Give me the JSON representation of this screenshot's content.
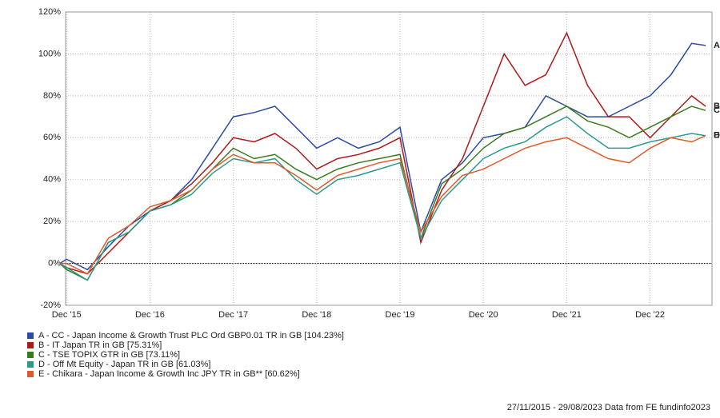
{
  "chart_data": {
    "type": "line",
    "x": [
      "2015-11",
      "2015-12",
      "2016-03",
      "2016-06",
      "2016-09",
      "2016-12",
      "2017-03",
      "2017-06",
      "2017-09",
      "2017-12",
      "2018-03",
      "2018-06",
      "2018-09",
      "2018-12",
      "2019-03",
      "2019-06",
      "2019-09",
      "2019-12",
      "2020-03",
      "2020-06",
      "2020-09",
      "2020-12",
      "2021-03",
      "2021-06",
      "2021-09",
      "2021-12",
      "2022-03",
      "2022-06",
      "2022-09",
      "2022-12",
      "2023-03",
      "2023-06",
      "2023-08"
    ],
    "xlim": [
      "2015-11-27",
      "2023-08-29"
    ],
    "xticks": [
      {
        "value": "2015-12",
        "label": "Dec '15"
      },
      {
        "value": "2016-12",
        "label": "Dec '16"
      },
      {
        "value": "2017-12",
        "label": "Dec '17"
      },
      {
        "value": "2018-12",
        "label": "Dec '18"
      },
      {
        "value": "2019-12",
        "label": "Dec '19"
      },
      {
        "value": "2020-12",
        "label": "Dec '20"
      },
      {
        "value": "2021-12",
        "label": "Dec '21"
      },
      {
        "value": "2022-12",
        "label": "Dec '22"
      }
    ],
    "ylim": [
      -20,
      120
    ],
    "yticks": [
      {
        "value": -20,
        "label": "-20%"
      },
      {
        "value": 0,
        "label": "0%"
      },
      {
        "value": 20,
        "label": "20%"
      },
      {
        "value": 40,
        "label": "40%"
      },
      {
        "value": 60,
        "label": "60%"
      },
      {
        "value": 80,
        "label": "80%"
      },
      {
        "value": 100,
        "label": "100%"
      },
      {
        "value": 120,
        "label": "120%"
      }
    ],
    "grid": true,
    "series": [
      {
        "tag": "A",
        "name": "A - CC - Japan Income & Growth Trust PLC Ord GBP0.01 TR in GB [104.23%]",
        "color": "#2b4ca6",
        "values": [
          0,
          2,
          -3,
          8,
          18,
          25,
          30,
          40,
          55,
          70,
          72,
          75,
          65,
          55,
          60,
          55,
          58,
          65,
          15,
          40,
          48,
          60,
          62,
          65,
          80,
          75,
          70,
          70,
          75,
          80,
          90,
          105,
          104
        ]
      },
      {
        "tag": "B",
        "name": "B - IT Japan TR in GB [75.31%]",
        "color": "#b01818",
        "values": [
          0,
          -2,
          -5,
          5,
          15,
          25,
          30,
          38,
          48,
          60,
          58,
          62,
          55,
          45,
          50,
          52,
          55,
          60,
          10,
          35,
          50,
          75,
          100,
          85,
          90,
          110,
          85,
          70,
          70,
          60,
          70,
          80,
          75
        ]
      },
      {
        "tag": "C",
        "name": "C - TSE TOPIX GTR in GB [73.11%]",
        "color": "#3a7a1a",
        "values": [
          0,
          -3,
          -8,
          10,
          15,
          25,
          28,
          35,
          45,
          55,
          50,
          52,
          45,
          40,
          45,
          48,
          50,
          52,
          12,
          38,
          45,
          55,
          62,
          65,
          70,
          75,
          68,
          65,
          60,
          65,
          70,
          75,
          73
        ]
      },
      {
        "tag": "D",
        "name": "D - Off Mt Equity - Japan TR in GB [61.03%]",
        "color": "#2a9a8c",
        "values": [
          0,
          -2,
          -8,
          10,
          15,
          25,
          28,
          33,
          43,
          50,
          48,
          50,
          40,
          33,
          40,
          42,
          45,
          48,
          12,
          30,
          40,
          50,
          55,
          58,
          65,
          70,
          62,
          55,
          55,
          58,
          60,
          62,
          61
        ]
      },
      {
        "tag": "E",
        "name": "E - Chikara - Japan Income & Growth Inc JPY TR in GB** [60.62%]",
        "color": "#e05a28",
        "values": [
          0,
          0,
          -5,
          12,
          18,
          27,
          30,
          35,
          45,
          52,
          48,
          48,
          42,
          35,
          42,
          45,
          48,
          50,
          15,
          32,
          42,
          45,
          50,
          55,
          58,
          60,
          55,
          50,
          48,
          55,
          60,
          58,
          61
        ]
      }
    ],
    "footer": "27/11/2015 - 29/08/2023 Data from FE fundinfo2023"
  }
}
